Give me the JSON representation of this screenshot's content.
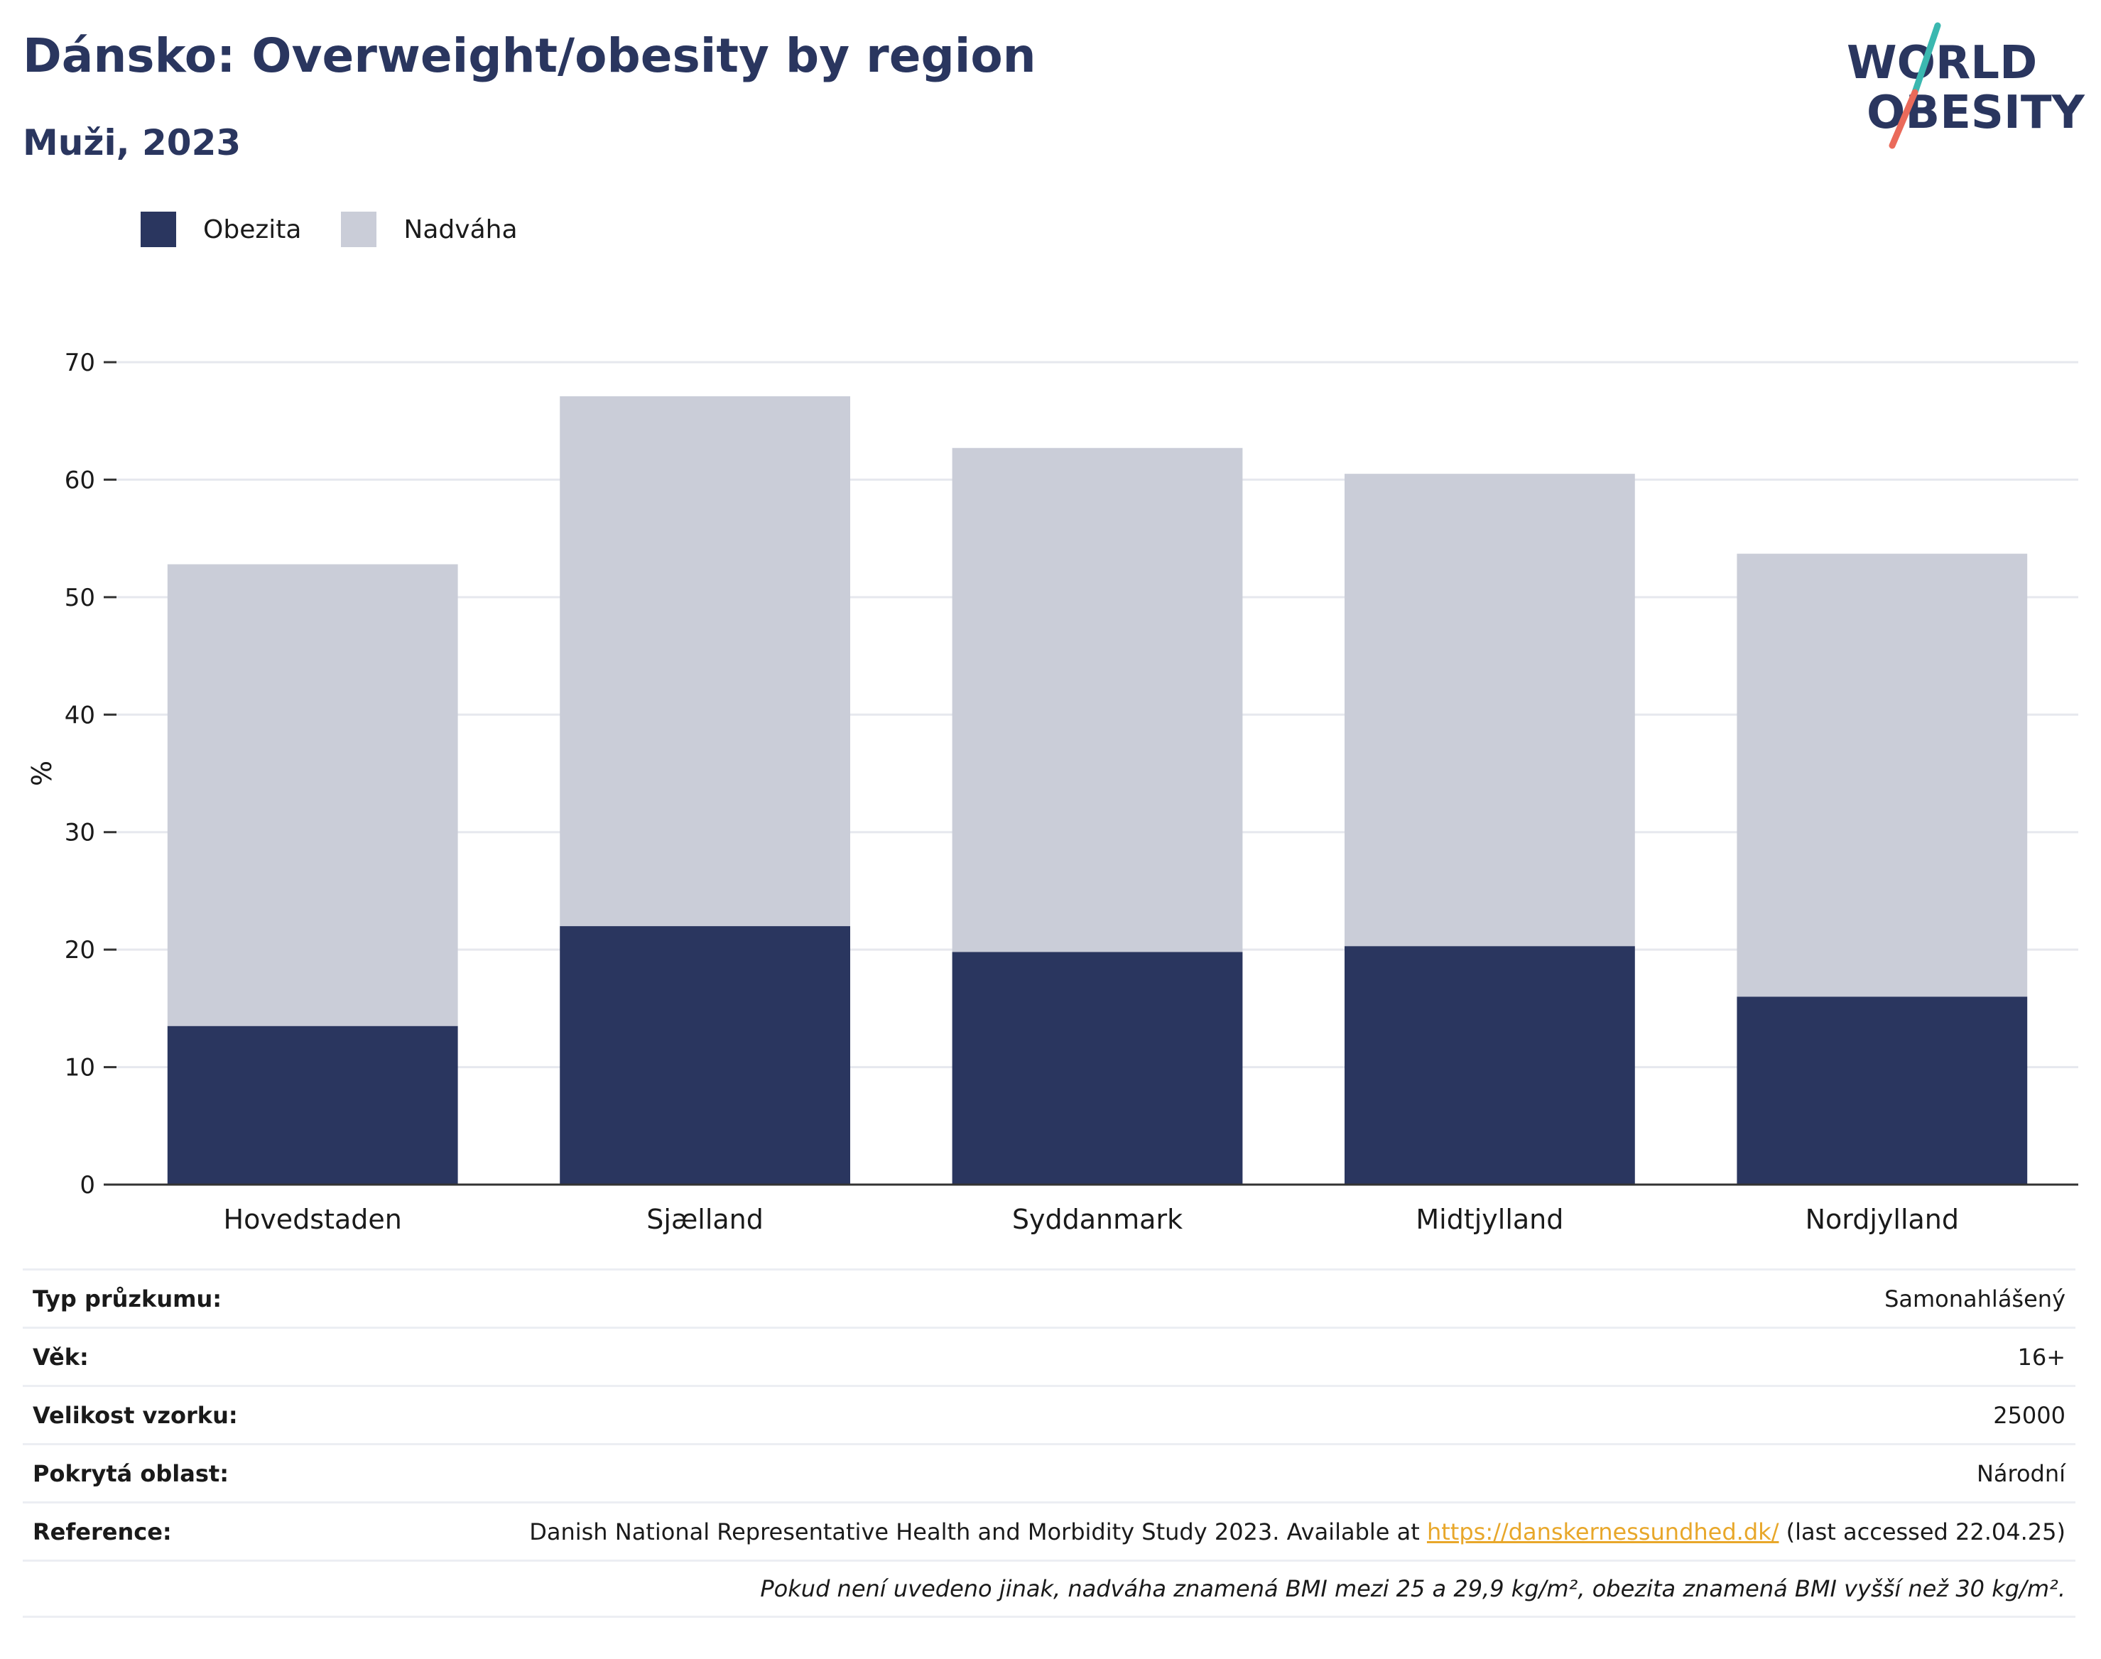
{
  "header": {
    "title": "Dánsko: Overweight/obesity by region",
    "subtitle": "Muži, 2023"
  },
  "logo": {
    "line1": "WORLD",
    "line2": "OBESITY",
    "colors": {
      "text": "#2a365f",
      "accent_top": "#3bb8b0",
      "accent_bottom": "#ea6a5a"
    }
  },
  "legend": [
    {
      "label": "Obezita",
      "color": "#2a365f"
    },
    {
      "label": "Nadváha",
      "color": "#cacdd8"
    }
  ],
  "chart_data": {
    "type": "bar",
    "stacked": true,
    "categories": [
      "Hovedstaden",
      "Sjælland",
      "Syddanmark",
      "Midtjylland",
      "Nordjylland"
    ],
    "series": [
      {
        "name": "Obezita",
        "values": [
          13.5,
          22.0,
          19.8,
          20.3,
          16.0
        ],
        "color": "#2a365f"
      },
      {
        "name": "Nadváha",
        "values": [
          39.3,
          45.1,
          42.9,
          40.2,
          37.7
        ],
        "color": "#cacdd8"
      }
    ],
    "ylabel": "%",
    "ylim": [
      0,
      70
    ],
    "yticks": [
      0,
      10,
      20,
      30,
      40,
      50,
      60,
      70
    ],
    "grid": true,
    "legend_position": "top-left"
  },
  "info": {
    "rows": [
      {
        "label": "Typ průzkumu:",
        "value": "Samonahlášený"
      },
      {
        "label": "Věk:",
        "value": "16+"
      },
      {
        "label": "Velikost vzorku:",
        "value": "25000"
      },
      {
        "label": "Pokrytá oblast:",
        "value": "Národní"
      }
    ],
    "reference": {
      "label": "Reference:",
      "text_before": "Danish National Representative Health and Morbidity Study 2023. Available at ",
      "link": "https://danskernessundhed.dk/",
      "text_after": " (last accessed 22.04.25)"
    },
    "note": "Pokud není uvedeno jinak, nadváha znamená BMI mezi 25 a 29,9 kg/m², obezita znamená BMI vyšší než 30 kg/m²."
  }
}
